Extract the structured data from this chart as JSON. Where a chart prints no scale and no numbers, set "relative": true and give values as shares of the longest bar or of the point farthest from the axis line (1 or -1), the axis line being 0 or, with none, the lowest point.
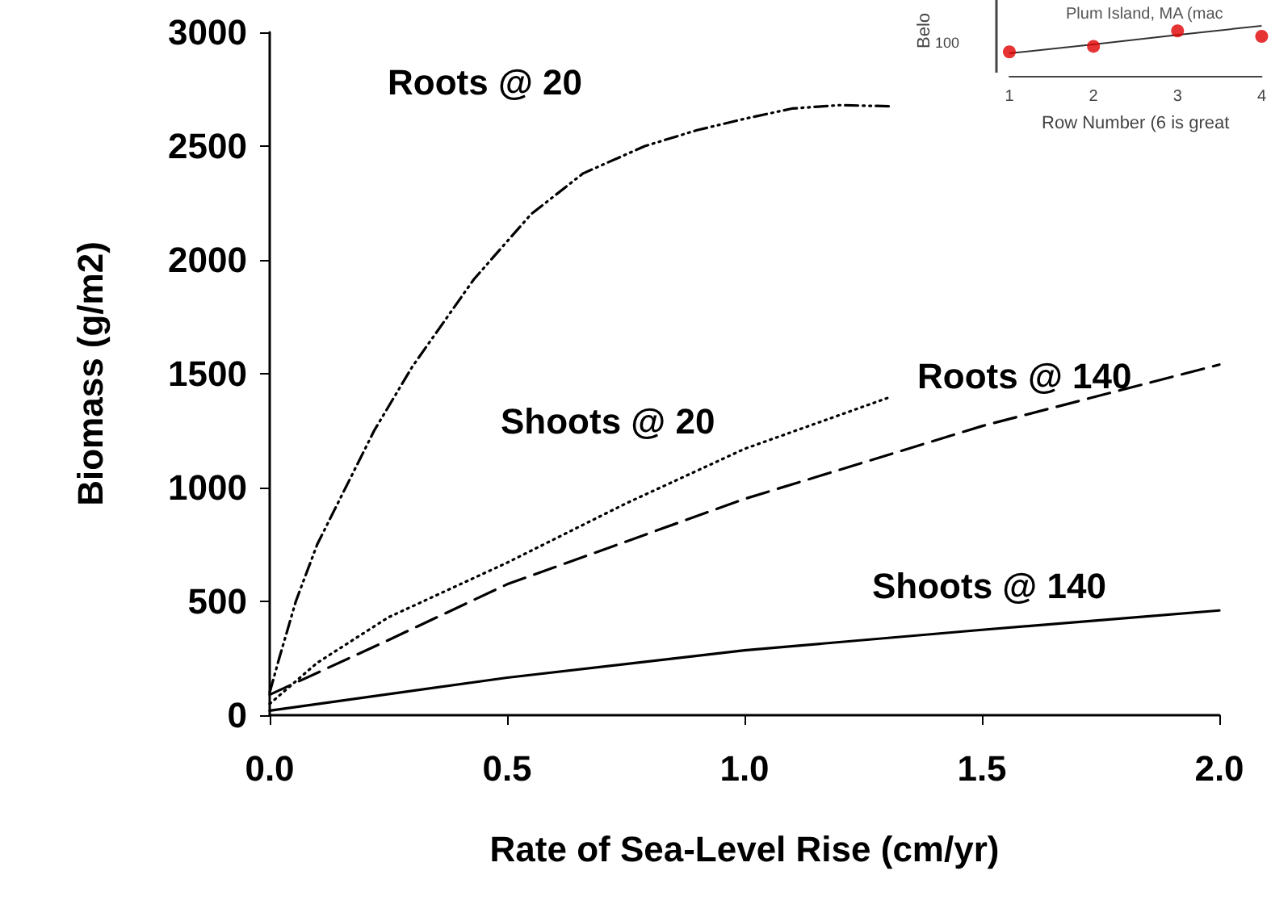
{
  "chart_data": [
    {
      "type": "line",
      "xlabel": "Rate of Sea-Level Rise (cm/yr)",
      "ylabel": "Biomass (g/m2)",
      "xlim": [
        0,
        2
      ],
      "xticks": [
        {
          "value": 0,
          "label": "0.0"
        },
        {
          "value": 0.5,
          "label": "0.5"
        },
        {
          "value": 1,
          "label": "1.0"
        },
        {
          "value": 1.5,
          "label": "1.5"
        },
        {
          "value": 2,
          "label": "2.0"
        }
      ],
      "ylim": [
        0,
        3000
      ],
      "yticks": [
        0,
        500,
        1000,
        1500,
        2000,
        2500,
        3000
      ],
      "grid": false,
      "legend": false,
      "marker": "none",
      "series": [
        {
          "name": "Roots @ 20",
          "color": "#000000",
          "line_style": "dashdot",
          "x": [
            0,
            0.02,
            0.055,
            0.1,
            0.16,
            0.22,
            0.3,
            0.43,
            0.55,
            0.66,
            0.79,
            0.9,
            1.0,
            1.1,
            1.2,
            1.31
          ],
          "values": [
            100,
            250,
            500,
            750,
            1000,
            1250,
            1530,
            1915,
            2200,
            2380,
            2500,
            2570,
            2620,
            2665,
            2680,
            2675
          ]
        },
        {
          "name": "Shoots @ 20",
          "color": "#000000",
          "line_style": "dotted",
          "x": [
            0,
            0.1,
            0.25,
            0.5,
            0.75,
            1.0,
            1.31
          ],
          "values": [
            50,
            230,
            430,
            670,
            930,
            1170,
            1400
          ]
        },
        {
          "name": "Roots @ 140",
          "color": "#000000",
          "line_style": "dashed",
          "x": [
            0,
            0.25,
            0.5,
            1.0,
            1.5,
            2.0
          ],
          "values": [
            90,
            330,
            575,
            950,
            1270,
            1540
          ]
        },
        {
          "name": "Shoots @ 140",
          "color": "#000000",
          "line_style": "solid",
          "x": [
            0,
            0.5,
            1.0,
            1.5,
            2.0
          ],
          "values": [
            20,
            165,
            285,
            375,
            460
          ]
        }
      ]
    },
    {
      "type": "scatter",
      "relative": true,
      "title": "Plum Island, MA (mac",
      "xlabel": "Row Number (6 is great",
      "ylabel": "Belo",
      "categories": [
        "1",
        "2",
        "3",
        "4"
      ],
      "annotations": [
        "100"
      ],
      "legend": false,
      "grid": false,
      "series": [
        {
          "color": "#e00000",
          "marker": "circle",
          "values": [
            0.48,
            0.59,
            0.9,
            0.79
          ]
        },
        {
          "type": "line",
          "color": "#333333",
          "marker": "none",
          "line_style": "solid",
          "values": [
            0.45,
            0.63,
            0.82,
            1.0
          ]
        }
      ]
    }
  ]
}
